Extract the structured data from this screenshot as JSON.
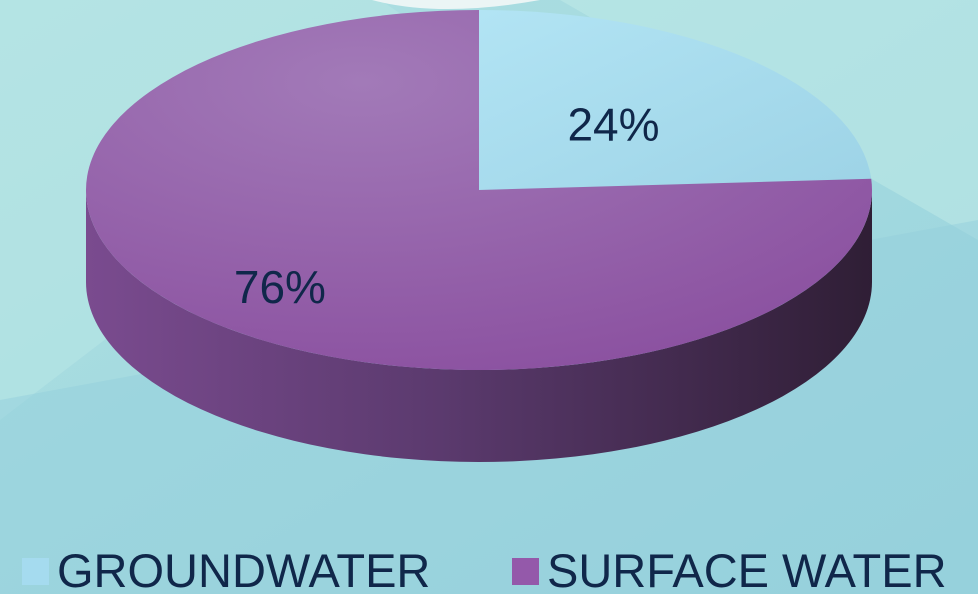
{
  "chart_data": {
    "type": "pie",
    "style": "3d",
    "slices": [
      {
        "label": "GROUNDWATER",
        "value": 24,
        "data_label": "24%",
        "color": "#a5dbef"
      },
      {
        "label": "SURFACE WATER",
        "value": 76,
        "data_label": "76%",
        "color": "#9459aa"
      }
    ],
    "legend": {
      "placement": "bottom",
      "entries": [
        {
          "label": "GROUNDWATER",
          "color": "#a5dbef"
        },
        {
          "label": "SURFACE WATER",
          "color": "#9459aa"
        }
      ]
    }
  },
  "colors": {
    "background": "#9fd6dd",
    "background_light": "#b6e3e5",
    "text": "#10274a"
  }
}
